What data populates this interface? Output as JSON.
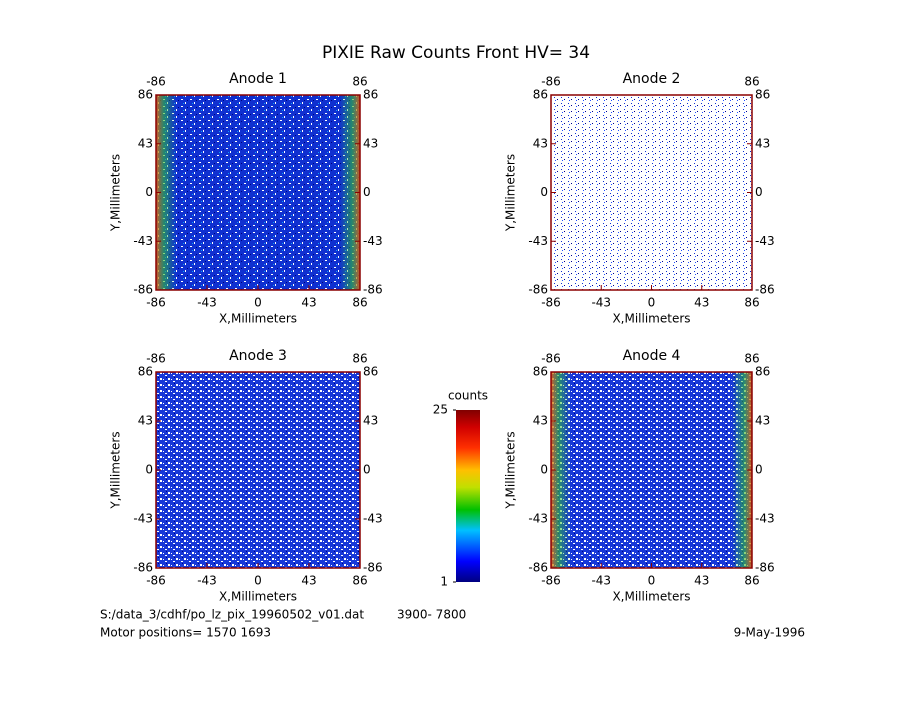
{
  "title": "PIXIE Raw Counts Front HV= 34",
  "chart_data": [
    {
      "type": "heatmap",
      "title": "Anode 1",
      "xlabel": "X,Millimeters",
      "ylabel": "Y,Millimeters",
      "xlim": [
        -86,
        86
      ],
      "ylim": [
        -86,
        86
      ],
      "xticks": [
        -86,
        -43,
        0,
        43,
        86
      ],
      "yticks": [
        -86,
        -43,
        0,
        43,
        86
      ],
      "x2ticks": [
        -86,
        86
      ],
      "y2ticks": [
        -86,
        -43,
        0,
        43,
        86
      ]
    },
    {
      "type": "heatmap",
      "title": "Anode 2",
      "xlabel": "X,Millimeters",
      "ylabel": "Y,Millimeters",
      "xlim": [
        -86,
        86
      ],
      "ylim": [
        -86,
        86
      ],
      "xticks": [
        -86,
        -43,
        0,
        43,
        86
      ],
      "yticks": [
        -86,
        -43,
        0,
        43,
        86
      ],
      "x2ticks": [
        -86,
        86
      ],
      "y2ticks": [
        -86,
        -43,
        0,
        43,
        86
      ]
    },
    {
      "type": "heatmap",
      "title": "Anode 3",
      "xlabel": "X,Millimeters",
      "ylabel": "Y,Millimeters",
      "xlim": [
        -86,
        86
      ],
      "ylim": [
        -86,
        86
      ],
      "xticks": [
        -86,
        -43,
        0,
        43,
        86
      ],
      "yticks": [
        -86,
        -43,
        0,
        43,
        86
      ],
      "x2ticks": [
        -86,
        86
      ],
      "y2ticks": [
        -86,
        -43,
        0,
        43,
        86
      ]
    },
    {
      "type": "heatmap",
      "title": "Anode 4",
      "xlabel": "X,Millimeters",
      "ylabel": "Y,Millimeters",
      "xlim": [
        -86,
        86
      ],
      "ylim": [
        -86,
        86
      ],
      "xticks": [
        -86,
        -43,
        0,
        43,
        86
      ],
      "yticks": [
        -86,
        -43,
        0,
        43,
        86
      ],
      "x2ticks": [
        -86,
        86
      ],
      "y2ticks": [
        -86,
        -43,
        0,
        43,
        86
      ]
    }
  ],
  "colorbar": {
    "label": "counts",
    "lim": [
      1,
      25
    ],
    "ticks": [
      1,
      25
    ]
  },
  "footer": {
    "file": "S:/data_3/cdhf/po_lz_pix_19960502_v01.dat",
    "range": "3900- 7800",
    "motor": "Motor positions= 1570 1693",
    "date": "9-May-1996"
  }
}
